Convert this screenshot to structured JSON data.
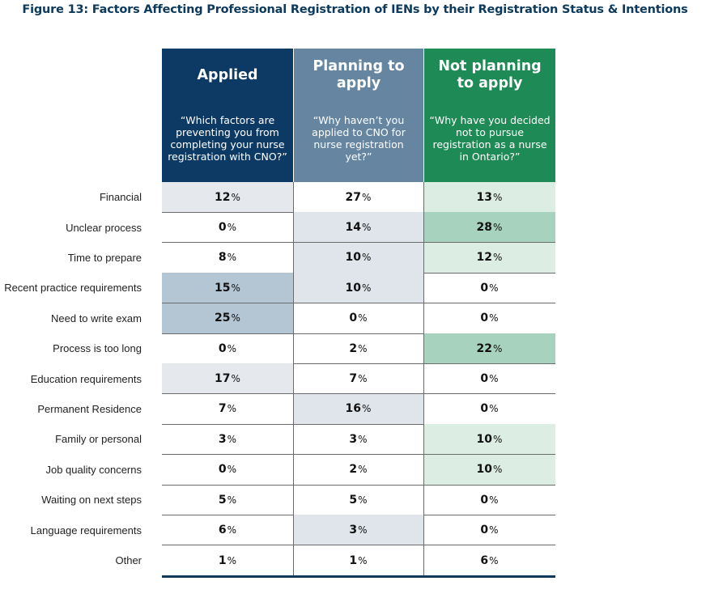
{
  "chart_data": {
    "type": "table",
    "title": "Figure 13: Factors Affecting Professional Registration of IENs by their Registration Status & Intentions",
    "columns": [
      {
        "key": "applied",
        "label": "Applied",
        "question": "“Which factors are preventing you from completing your nurse registration with CNO?”",
        "header_color": "#0d3a64"
      },
      {
        "key": "planning",
        "label": "Planning to apply",
        "question": "“Why haven’t you applied to CNO for nurse registration yet?”",
        "header_color": "#6685a0"
      },
      {
        "key": "not_planning",
        "label": "Not planning to apply",
        "question": "“Why have you decided not to pursue registration as a nurse in Ontario?”",
        "header_color": "#1e8a55"
      }
    ],
    "rows": [
      {
        "label": "Financial",
        "values": [
          12,
          27,
          13
        ]
      },
      {
        "label": "Unclear process",
        "values": [
          0,
          14,
          28
        ]
      },
      {
        "label": "Time to prepare",
        "values": [
          8,
          10,
          12
        ]
      },
      {
        "label": "Recent practice requirements",
        "values": [
          15,
          10,
          0
        ]
      },
      {
        "label": "Need to write exam",
        "values": [
          25,
          0,
          0
        ]
      },
      {
        "label": "Process is too long",
        "values": [
          0,
          2,
          22
        ]
      },
      {
        "label": "Education requirements",
        "values": [
          17,
          7,
          0
        ]
      },
      {
        "label": "Permanent Residence",
        "values": [
          7,
          16,
          0
        ]
      },
      {
        "label": "Family or personal",
        "values": [
          3,
          3,
          10
        ]
      },
      {
        "label": "Job quality concerns",
        "values": [
          0,
          2,
          10
        ]
      },
      {
        "label": "Waiting on next steps",
        "values": [
          5,
          5,
          0
        ]
      },
      {
        "label": "Language requirements",
        "values": [
          6,
          3,
          0
        ]
      },
      {
        "label": "Other",
        "values": [
          1,
          1,
          6
        ]
      }
    ],
    "unit": "%",
    "shading": {
      "applied": {
        "light": "#e5e9ee",
        "medium": "#b4c5d4"
      },
      "planning": {
        "light": "#dfe5eb",
        "medium": "#a4b6c7"
      },
      "not_planning": {
        "light": "#dcede3",
        "medium": "#a7d3be"
      }
    },
    "highlight_levels": [
      [
        "light",
        null,
        "light"
      ],
      [
        null,
        "light",
        "medium"
      ],
      [
        null,
        "light",
        "light"
      ],
      [
        "medium",
        "light",
        null
      ],
      [
        "medium",
        null,
        null
      ],
      [
        null,
        null,
        "medium"
      ],
      [
        "light",
        null,
        null
      ],
      [
        null,
        "light",
        null
      ],
      [
        null,
        null,
        "light"
      ],
      [
        null,
        null,
        "light"
      ],
      [
        null,
        null,
        null
      ],
      [
        null,
        "light",
        null
      ],
      [
        null,
        null,
        null
      ]
    ]
  }
}
